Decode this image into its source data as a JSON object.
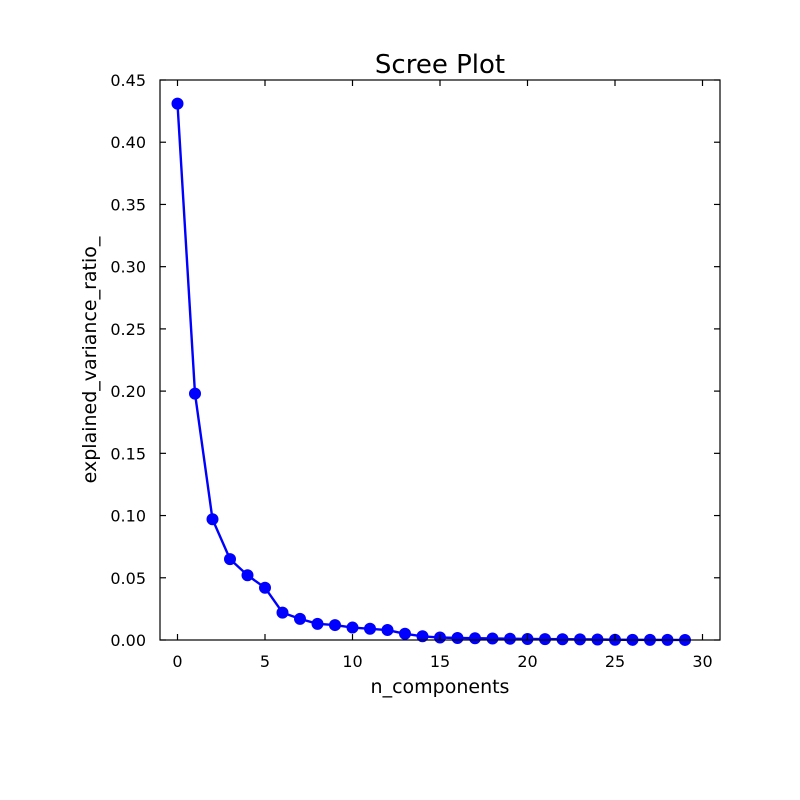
{
  "chart_data": {
    "type": "line",
    "title": "Scree Plot",
    "xlabel": "n_components",
    "ylabel": "explained_variance_ratio_",
    "xlim": [
      -1,
      31
    ],
    "ylim": [
      0,
      0.45
    ],
    "xticks": [
      0,
      5,
      10,
      15,
      20,
      25,
      30
    ],
    "yticks": [
      0.0,
      0.05,
      0.1,
      0.15,
      0.2,
      0.25,
      0.3,
      0.35,
      0.4,
      0.45
    ],
    "ytick_labels": [
      "0.00",
      "0.05",
      "0.10",
      "0.15",
      "0.20",
      "0.25",
      "0.30",
      "0.35",
      "0.40",
      "0.45"
    ],
    "xtick_labels": [
      "0",
      "5",
      "10",
      "15",
      "20",
      "25",
      "30"
    ],
    "grid": false,
    "series": [
      {
        "marker": "circle",
        "color": "#0000ff",
        "x": [
          0,
          1,
          2,
          3,
          4,
          5,
          6,
          7,
          8,
          9,
          10,
          11,
          12,
          13,
          14,
          15,
          16,
          17,
          18,
          19,
          20,
          21,
          22,
          23,
          24,
          25,
          26,
          27,
          28,
          29
        ],
        "y": [
          0.431,
          0.198,
          0.097,
          0.065,
          0.052,
          0.042,
          0.022,
          0.017,
          0.013,
          0.012,
          0.01,
          0.009,
          0.008,
          0.005,
          0.003,
          0.002,
          0.0016,
          0.0014,
          0.0012,
          0.001,
          0.0008,
          0.0007,
          0.0006,
          0.0005,
          0.0004,
          0.0002,
          0.00015,
          0.0001,
          8e-05,
          5e-05
        ]
      }
    ]
  }
}
